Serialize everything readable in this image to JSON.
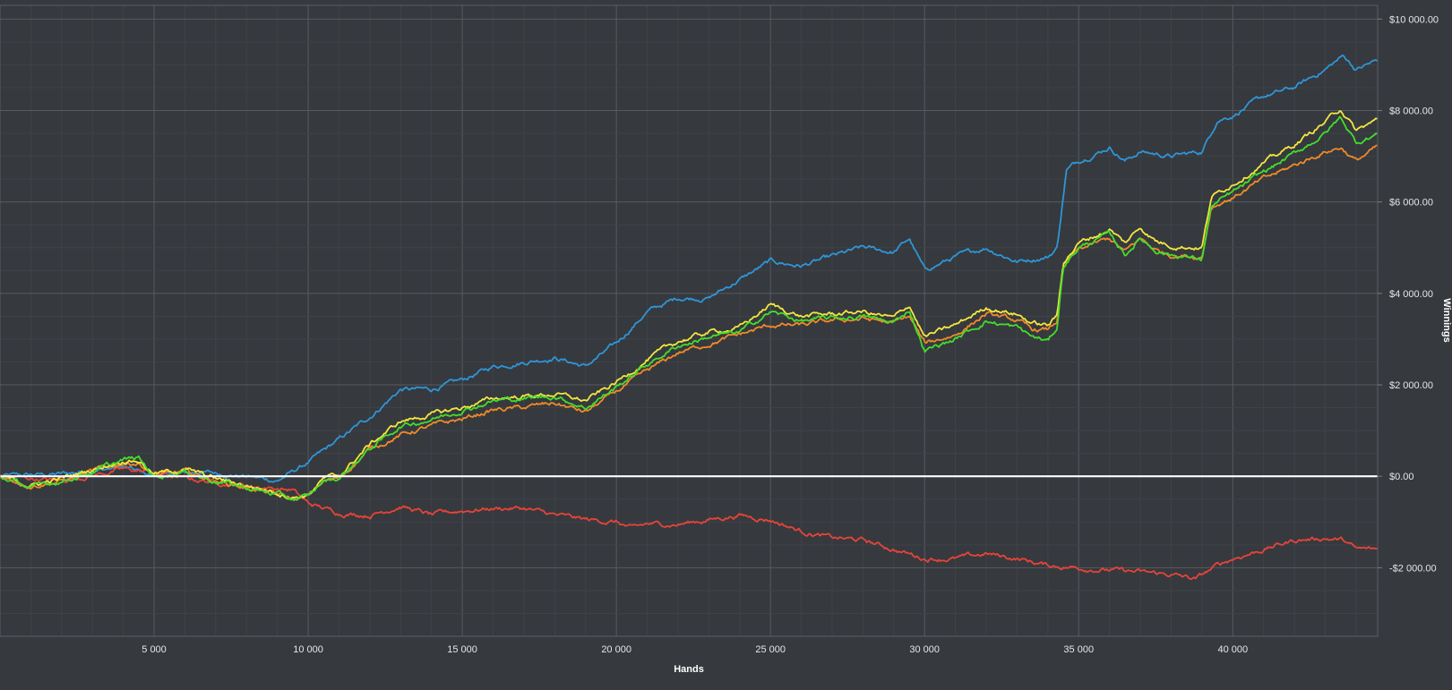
{
  "chart_data": {
    "type": "line",
    "title": "",
    "xlabel": "Hands",
    "ylabel": "Winnings",
    "xlim": [
      0,
      44700
    ],
    "ylim": [
      -3500,
      10300
    ],
    "x_ticks": [
      5000,
      10000,
      15000,
      20000,
      25000,
      30000,
      35000,
      40000
    ],
    "x_tick_labels": [
      "5 000",
      "10 000",
      "15 000",
      "20 000",
      "25 000",
      "30 000",
      "35 000",
      "40 000"
    ],
    "y_ticks": [
      -2000,
      0,
      2000,
      4000,
      6000,
      8000,
      10000
    ],
    "y_tick_labels": [
      "-$2 000.00",
      "$0.00",
      "$2 000.00",
      "$4 000.00",
      "$6 000.00",
      "$8 000.00",
      "$10 000.00"
    ],
    "grid": true,
    "legend": "none",
    "zero_line_color": "#ffffff",
    "series": [
      {
        "color": "#2f95d6",
        "x": [
          0,
          2000,
          4000,
          5000,
          6500,
          8000,
          9000,
          10000,
          11000,
          12000,
          13000,
          14000,
          15000,
          16000,
          17000,
          18000,
          19000,
          20000,
          21000,
          22000,
          23000,
          24000,
          25000,
          26000,
          27000,
          28000,
          29000,
          29500,
          30000,
          31000,
          32000,
          33000,
          34000,
          34300,
          34600,
          35000,
          36000,
          36500,
          37000,
          38000,
          39000,
          39500,
          40000,
          41000,
          42000,
          43000,
          43600,
          44000,
          44700
        ],
        "y": [
          0,
          50,
          200,
          0,
          100,
          0,
          -100,
          300,
          800,
          1300,
          1900,
          1900,
          2100,
          2400,
          2500,
          2600,
          2400,
          2900,
          3600,
          3900,
          3900,
          4300,
          4700,
          4600,
          4800,
          5000,
          4900,
          5200,
          4500,
          4800,
          5000,
          4700,
          4800,
          5000,
          6700,
          6900,
          7200,
          6900,
          7100,
          7000,
          7100,
          7800,
          7900,
          8300,
          8500,
          8900,
          9200,
          8900,
          9100
        ]
      },
      {
        "color": "#e6443a",
        "x": [
          0,
          2000,
          4000,
          4800,
          6000,
          8000,
          9500,
          10000,
          11000,
          12000,
          13000,
          14000,
          15000,
          16000,
          17000,
          18000,
          19000,
          20000,
          20500,
          21000,
          22000,
          23000,
          24000,
          25000,
          26000,
          27000,
          28000,
          29000,
          30000,
          31000,
          32000,
          33000,
          34000,
          35000,
          36000,
          37000,
          38000,
          38800,
          39500,
          40000,
          41000,
          42000,
          43000,
          43600,
          44000,
          44700
        ],
        "y": [
          0,
          -100,
          150,
          100,
          -50,
          -200,
          -300,
          -600,
          -800,
          -850,
          -650,
          -850,
          -750,
          -700,
          -700,
          -850,
          -950,
          -1000,
          -1150,
          -1050,
          -1050,
          -950,
          -850,
          -950,
          -1200,
          -1350,
          -1400,
          -1600,
          -1800,
          -1800,
          -1700,
          -1800,
          -1950,
          -2000,
          -2050,
          -2100,
          -2150,
          -2250,
          -1950,
          -1800,
          -1600,
          -1400,
          -1350,
          -1400,
          -1600,
          -1600
        ]
      },
      {
        "color": "#f08a28",
        "x": [
          0,
          1000,
          2000,
          3000,
          4000,
          4500,
          5000,
          6000,
          7000,
          8000,
          9000,
          9500,
          10000,
          10500,
          11000,
          12000,
          13000,
          14000,
          15000,
          16000,
          17000,
          18000,
          19000,
          20000,
          21000,
          22000,
          23000,
          24000,
          25000,
          26000,
          27000,
          28000,
          29000,
          29500,
          30000,
          31000,
          32000,
          33000,
          33500,
          34000,
          34300,
          34500,
          35000,
          36000,
          36500,
          37000,
          37500,
          38000,
          39000,
          39300,
          40000,
          41000,
          42000,
          43000,
          43500,
          44000,
          44700
        ],
        "y": [
          0,
          -200,
          -100,
          100,
          300,
          300,
          0,
          100,
          -100,
          -250,
          -400,
          -500,
          -450,
          -100,
          -50,
          600,
          900,
          1100,
          1250,
          1450,
          1500,
          1600,
          1400,
          1850,
          2300,
          2700,
          2900,
          3100,
          3300,
          3300,
          3400,
          3450,
          3350,
          3500,
          2900,
          3100,
          3550,
          3400,
          3200,
          3200,
          3400,
          4600,
          4950,
          5200,
          4900,
          5200,
          4950,
          4850,
          4800,
          5900,
          6100,
          6500,
          6800,
          7100,
          7200,
          6900,
          7200
        ]
      },
      {
        "color": "#f2e640",
        "x": [
          0,
          1000,
          2000,
          3000,
          4000,
          4500,
          5000,
          6000,
          7000,
          8000,
          9000,
          9500,
          10000,
          10500,
          11000,
          12000,
          13000,
          14000,
          15000,
          16000,
          17000,
          18000,
          19000,
          20000,
          21000,
          22000,
          23000,
          24000,
          25000,
          26000,
          27000,
          28000,
          29000,
          29500,
          30000,
          31000,
          32000,
          33000,
          33500,
          34000,
          34300,
          34500,
          35000,
          36000,
          36500,
          37000,
          37500,
          38000,
          39000,
          39300,
          40000,
          41000,
          42000,
          43000,
          43500,
          44000,
          44700
        ],
        "y": [
          0,
          -200,
          -50,
          150,
          350,
          350,
          50,
          150,
          -50,
          -200,
          -350,
          -450,
          -400,
          -50,
          0,
          700,
          1200,
          1350,
          1500,
          1700,
          1750,
          1800,
          1650,
          2050,
          2550,
          2950,
          3150,
          3250,
          3750,
          3500,
          3550,
          3600,
          3450,
          3750,
          3050,
          3300,
          3700,
          3550,
          3350,
          3300,
          3500,
          4700,
          5100,
          5400,
          5100,
          5450,
          5150,
          5050,
          5000,
          6100,
          6400,
          6850,
          7250,
          7750,
          8050,
          7550,
          7800
        ]
      },
      {
        "color": "#44dd2c",
        "x": [
          0,
          1000,
          2000,
          3000,
          4000,
          4500,
          5000,
          6000,
          7000,
          8000,
          9000,
          9500,
          10000,
          10500,
          11000,
          12000,
          13000,
          14000,
          15000,
          16000,
          17000,
          18000,
          19000,
          20000,
          21000,
          22000,
          23000,
          24000,
          25000,
          26000,
          27000,
          28000,
          29000,
          29500,
          30000,
          31000,
          32000,
          33000,
          33500,
          34000,
          34300,
          34500,
          35000,
          36000,
          36500,
          37000,
          37500,
          38000,
          39000,
          39300,
          40000,
          41000,
          42000,
          43000,
          43500,
          44000,
          44700
        ],
        "y": [
          0,
          -250,
          -100,
          100,
          350,
          400,
          0,
          100,
          -100,
          -250,
          -400,
          -500,
          -450,
          -100,
          -50,
          600,
          1100,
          1250,
          1450,
          1650,
          1700,
          1750,
          1500,
          1950,
          2450,
          2850,
          3050,
          3150,
          3600,
          3400,
          3450,
          3500,
          3350,
          3650,
          2750,
          3000,
          3400,
          3250,
          3050,
          2950,
          3250,
          4600,
          5000,
          5300,
          4850,
          5200,
          4950,
          4850,
          4750,
          5900,
          6200,
          6650,
          7050,
          7500,
          7850,
          7300,
          7500
        ]
      }
    ]
  }
}
